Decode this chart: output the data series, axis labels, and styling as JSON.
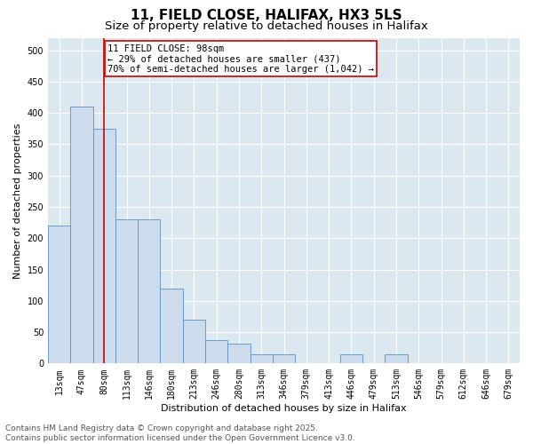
{
  "title_line1": "11, FIELD CLOSE, HALIFAX, HX3 5LS",
  "title_line2": "Size of property relative to detached houses in Halifax",
  "xlabel": "Distribution of detached houses by size in Halifax",
  "ylabel": "Number of detached properties",
  "categories": [
    "13sqm",
    "47sqm",
    "80sqm",
    "113sqm",
    "146sqm",
    "180sqm",
    "213sqm",
    "246sqm",
    "280sqm",
    "313sqm",
    "346sqm",
    "379sqm",
    "413sqm",
    "446sqm",
    "479sqm",
    "513sqm",
    "546sqm",
    "579sqm",
    "612sqm",
    "646sqm",
    "679sqm"
  ],
  "values": [
    220,
    410,
    375,
    230,
    230,
    120,
    70,
    38,
    32,
    14,
    14,
    0,
    0,
    14,
    0,
    14,
    0,
    0,
    0,
    0,
    0
  ],
  "bar_color": "#ccdcec",
  "bar_edge_color": "#5b92c0",
  "vline_x": 2,
  "vline_color": "#cc0000",
  "annotation_text": "11 FIELD CLOSE: 98sqm\n← 29% of detached houses are smaller (437)\n70% of semi-detached houses are larger (1,042) →",
  "annotation_box_color": "#ffffff",
  "annotation_box_edge_color": "#cc0000",
  "ylim": [
    0,
    520
  ],
  "yticks": [
    0,
    50,
    100,
    150,
    200,
    250,
    300,
    350,
    400,
    450,
    500
  ],
  "background_color": "#dce8f0",
  "grid_color": "#ffffff",
  "footer_text": "Contains HM Land Registry data © Crown copyright and database right 2025.\nContains public sector information licensed under the Open Government Licence v3.0.",
  "title_fontsize": 11,
  "subtitle_fontsize": 9.5,
  "axis_label_fontsize": 8,
  "tick_fontsize": 7,
  "annotation_fontsize": 7.5,
  "footer_fontsize": 6.5
}
